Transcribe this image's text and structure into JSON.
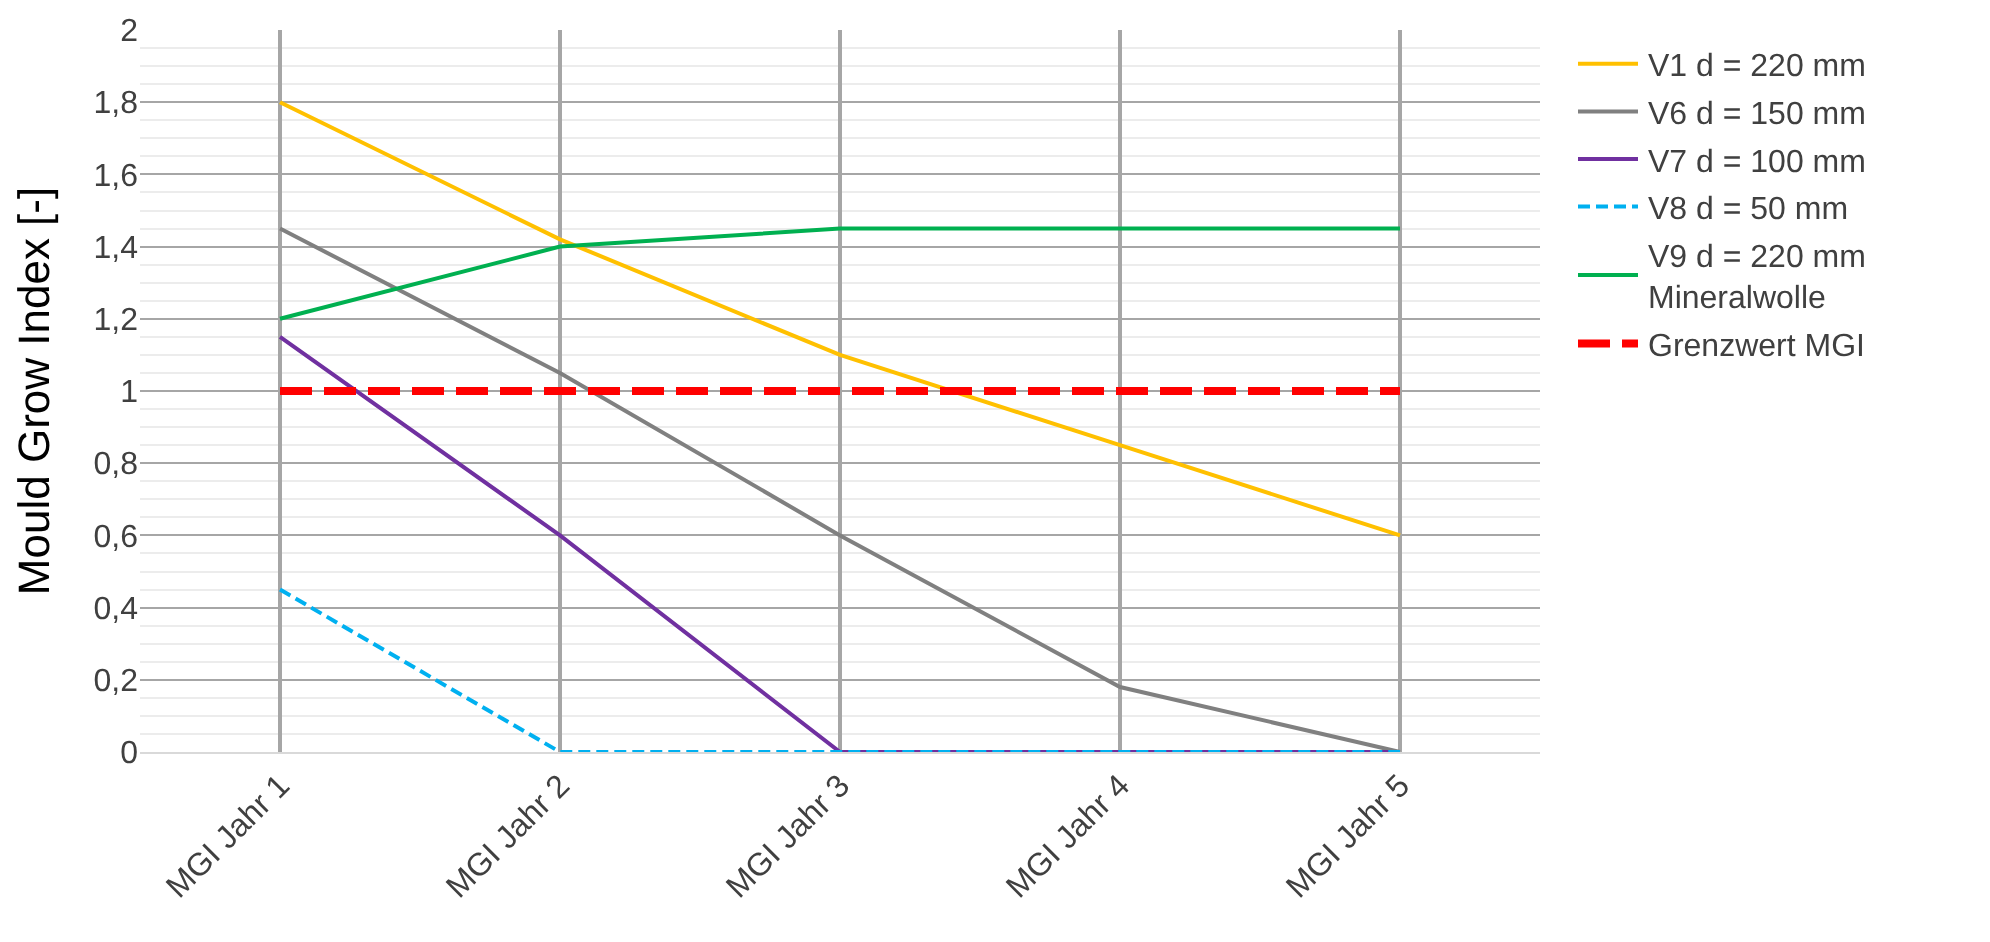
{
  "chart_data": {
    "type": "line",
    "ylabel": "Mould Grow Index [-]",
    "categories": [
      "MGI Jahr 1",
      "MGI Jahr 2",
      "MGI Jahr 3",
      "MGI Jahr 4",
      "MGI Jahr 5"
    ],
    "series": [
      {
        "name": "V1 d = 220 mm",
        "color": "#ffc000",
        "values": [
          1.8,
          1.42,
          1.1,
          0.85,
          0.6
        ]
      },
      {
        "name": "V6 d = 150 mm",
        "color": "#808080",
        "values": [
          1.45,
          1.05,
          0.6,
          0.18,
          0
        ]
      },
      {
        "name": "V7 d = 100 mm",
        "color": "#7030a0",
        "values": [
          1.15,
          0.6,
          0,
          0,
          0
        ]
      },
      {
        "name": "V8 d = 50 mm",
        "color": "#00b0f0",
        "values": [
          0.45,
          0,
          0,
          0,
          0
        ],
        "line_style": "dashed"
      },
      {
        "name": "V9 d = 220 mm\nMineralwolle",
        "color": "#00b050",
        "values": [
          1.2,
          1.4,
          1.45,
          1.45,
          1.45
        ]
      },
      {
        "name": "Grenzwert MGI",
        "color": "#ff0000",
        "values": [
          1,
          1,
          1,
          1,
          1
        ],
        "line_style": "dashed"
      }
    ],
    "ylim": [
      0,
      2
    ],
    "yticks": [
      0,
      {
        "value": 0.2,
        "label": "0,2"
      },
      {
        "value": 0.4,
        "label": "0,4"
      },
      {
        "value": 0.6,
        "label": "0,6"
      },
      {
        "value": 0.8,
        "label": "0,8"
      },
      1,
      {
        "value": 1.2,
        "label": "1,2"
      },
      {
        "value": 1.4,
        "label": "1,4"
      },
      {
        "value": 1.6,
        "label": "1,6"
      },
      {
        "value": 1.8,
        "label": "1,8"
      },
      2
    ],
    "grid": true,
    "legend": "right",
    "marker": "none",
    "line_style": "solid"
  }
}
